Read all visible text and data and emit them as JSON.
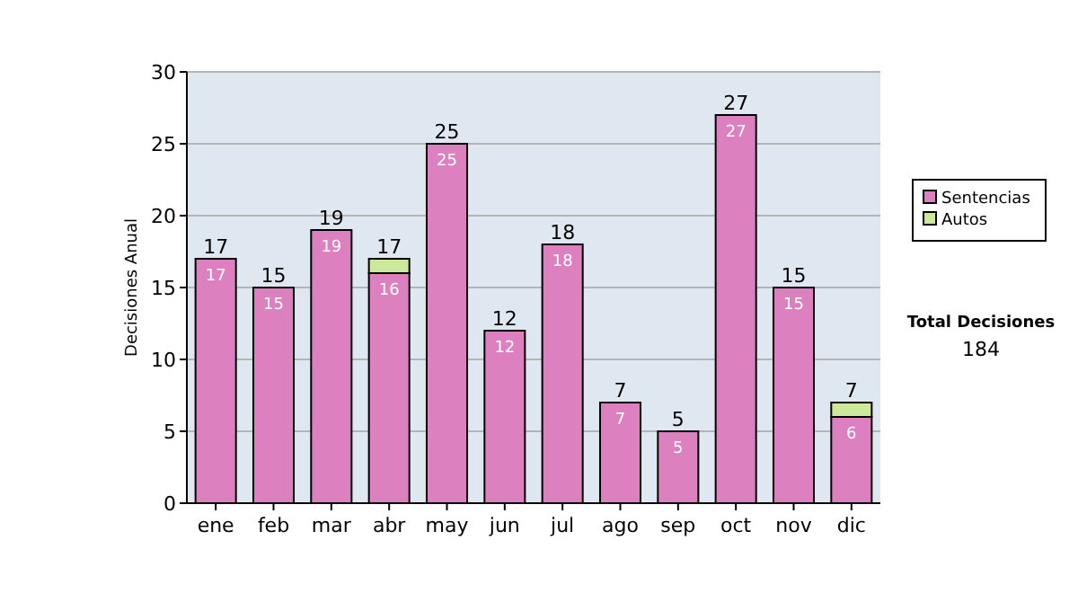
{
  "chart_data": {
    "type": "bar",
    "ylabel": "Decisiones Anual",
    "categories": [
      "ene",
      "feb",
      "mar",
      "abr",
      "may",
      "jun",
      "jul",
      "ago",
      "sep",
      "oct",
      "nov",
      "dic"
    ],
    "series": [
      {
        "name": "Sentencias",
        "color": "#dd80c0",
        "values": [
          17,
          15,
          19,
          16,
          25,
          12,
          18,
          7,
          5,
          27,
          15,
          6
        ],
        "value_labels": [
          "17",
          "15",
          "19",
          "16",
          "25",
          "12",
          "18",
          "7",
          "5",
          "27",
          "15",
          "6"
        ]
      },
      {
        "name": "Autos",
        "color": "#cce89a",
        "values": [
          0,
          0,
          0,
          1,
          0,
          0,
          0,
          0,
          0,
          0,
          0,
          1
        ]
      }
    ],
    "stacked": true,
    "totals": [
      "17",
      "15",
      "19",
      "17",
      "25",
      "12",
      "18",
      "7",
      "5",
      "27",
      "15",
      "7"
    ],
    "ylim": [
      0,
      30
    ],
    "yticks": [
      0,
      5,
      10,
      15,
      20,
      25,
      30
    ],
    "grid": "y",
    "legend": "right",
    "annotations": [
      "Total Decisiones",
      "184"
    ]
  }
}
